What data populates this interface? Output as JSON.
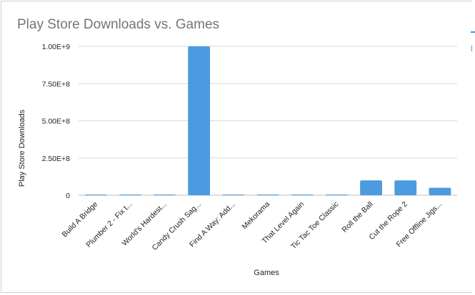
{
  "chart_data": {
    "type": "bar",
    "title": "Play Store Downloads vs. Games",
    "xlabel": "Games",
    "ylabel": "Play Store Downloads",
    "categories": [
      "Build A Bridge",
      "Plumber 2 - Fix t...",
      "World's Hardest...",
      "Candy Crush Sag...",
      "Find A Way: Add...",
      "Mekorama",
      "That Level Again",
      "Tic Tac Toe Classic",
      "Roll the Ball",
      "Cut the Rope 2",
      "Free Offline Jigs..."
    ],
    "values": [
      5000000,
      1000000,
      1000000,
      1000000000,
      1000000,
      5000000,
      5000000,
      5000000,
      100000000,
      100000000,
      50000000
    ],
    "ylim": [
      0,
      1000000000
    ],
    "yticks": [
      0,
      250000000,
      500000000,
      750000000,
      1000000000
    ],
    "ytick_labels": [
      "0",
      "2.50E+8",
      "5.00E+8",
      "7.50E+8",
      "1.00E+9"
    ],
    "grid": true,
    "bar_color": "#4c9be0"
  }
}
